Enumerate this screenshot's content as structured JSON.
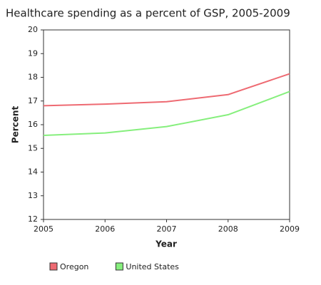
{
  "chart_data": {
    "type": "line",
    "title": "Healthcare spending as a percent of GSP, 2005-2009",
    "x_label": "Year",
    "y_label": "Percent",
    "x": [
      2005,
      2006,
      2007,
      2008,
      2009
    ],
    "series": [
      {
        "name": "Oregon",
        "color": "#ee6a72",
        "values": [
          16.8,
          16.87,
          16.97,
          17.27,
          18.15
        ]
      },
      {
        "name": "United States",
        "color": "#86ef7d",
        "values": [
          15.55,
          15.65,
          15.92,
          16.42,
          17.4
        ]
      }
    ],
    "xlim": [
      2005,
      2009
    ],
    "xticks": [
      2005,
      2006,
      2007,
      2008,
      2009
    ],
    "ylim": [
      12,
      20
    ],
    "yticks": [
      12,
      13,
      14,
      15,
      16,
      17,
      18,
      19,
      20
    ],
    "grid": false
  }
}
